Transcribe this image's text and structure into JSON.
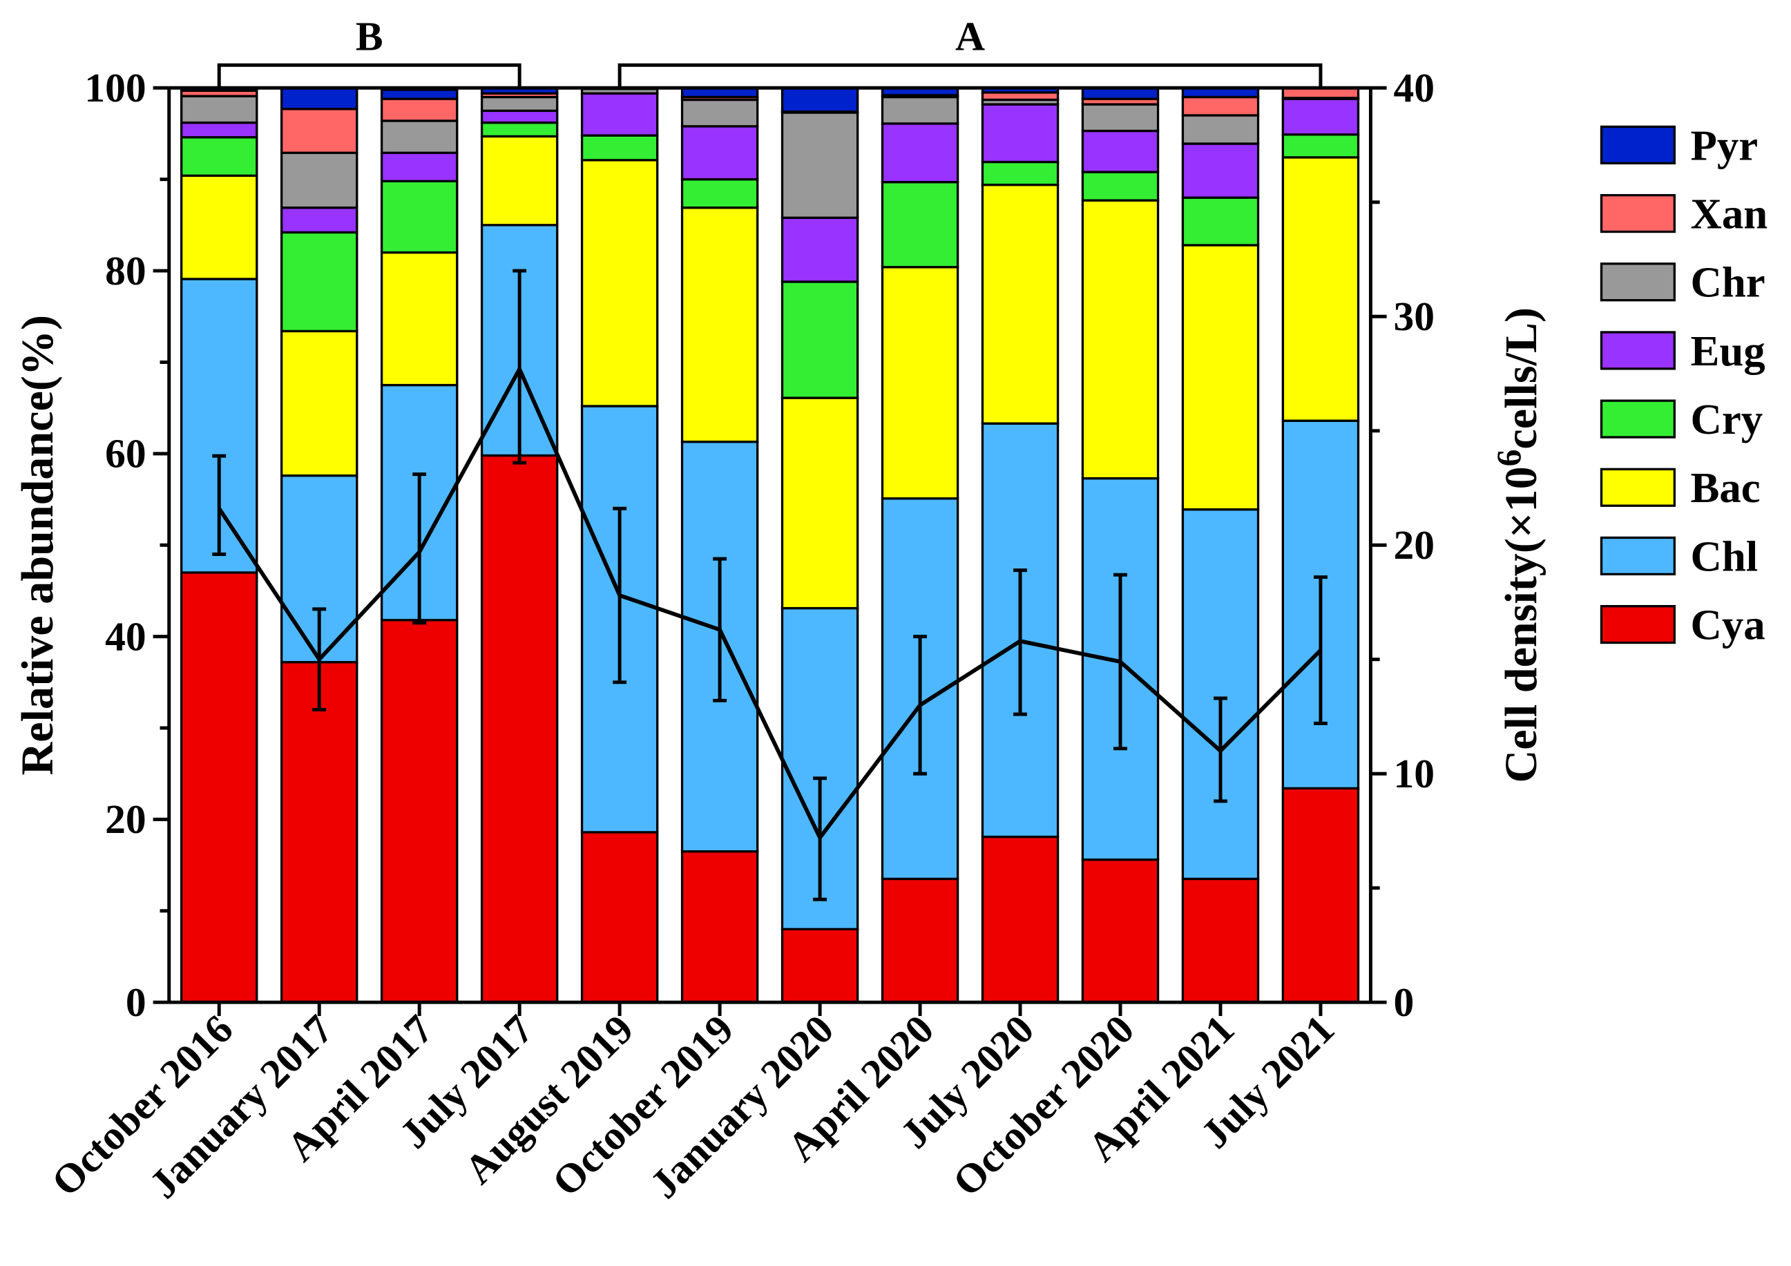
{
  "chart_data": {
    "type": "bar",
    "stacked": true,
    "categories": [
      "October 2016",
      "January 2017",
      "April 2017",
      "July 2017",
      "August 2019",
      "October 2019",
      "January 2020",
      "April 2020",
      "July 2020",
      "October 2020",
      "April 2021",
      "July 2021"
    ],
    "series": [
      {
        "name": "Cya",
        "color": "#EE0000",
        "values": [
          47.0,
          37.2,
          41.8,
          59.8,
          18.6,
          16.5,
          8.0,
          13.5,
          18.1,
          15.6,
          13.5,
          23.4
        ]
      },
      {
        "name": "Chl",
        "color": "#4DB8FF",
        "values": [
          32.1,
          20.4,
          25.7,
          25.2,
          46.6,
          44.8,
          35.1,
          41.6,
          45.2,
          41.7,
          40.4,
          40.2
        ]
      },
      {
        "name": "Bac",
        "color": "#FFFF00",
        "values": [
          11.3,
          15.8,
          14.5,
          9.7,
          26.9,
          25.6,
          23.0,
          25.3,
          26.1,
          30.4,
          28.9,
          28.8
        ]
      },
      {
        "name": "Cry",
        "color": "#33EE33",
        "values": [
          4.2,
          10.8,
          7.8,
          1.5,
          2.7,
          3.1,
          12.7,
          9.3,
          2.5,
          3.1,
          5.2,
          2.5
        ]
      },
      {
        "name": "Eug",
        "color": "#9933FF",
        "values": [
          1.6,
          2.7,
          3.1,
          1.3,
          4.6,
          5.8,
          7.0,
          6.4,
          6.3,
          4.5,
          5.9,
          3.9
        ]
      },
      {
        "name": "Chr",
        "color": "#999999",
        "values": [
          2.9,
          6.0,
          3.5,
          1.5,
          0.5,
          2.9,
          11.5,
          2.9,
          0.5,
          2.9,
          3.1,
          0.1
        ]
      },
      {
        "name": "Xan",
        "color": "#FF6666",
        "values": [
          0.6,
          4.8,
          2.4,
          0.4,
          0.1,
          0.3,
          0.1,
          0.2,
          0.8,
          0.6,
          2.0,
          1.1
        ]
      },
      {
        "name": "Pyr",
        "color": "#0022CC",
        "values": [
          0.3,
          2.3,
          1.0,
          0.6,
          0.0,
          1.0,
          2.6,
          0.8,
          0.5,
          1.2,
          1.0,
          0.0
        ]
      }
    ],
    "line": {
      "name": "Cell density",
      "axis": "right",
      "values": [
        21.6,
        15.0,
        19.7,
        27.7,
        17.8,
        16.3,
        7.2,
        13.0,
        15.8,
        14.9,
        11.0,
        15.4
      ],
      "error_low": [
        19.6,
        12.8,
        16.6,
        23.6,
        14.0,
        13.2,
        4.5,
        10.0,
        12.6,
        11.1,
        8.8,
        12.2
      ],
      "error_high": [
        23.9,
        17.2,
        23.1,
        32.0,
        21.6,
        19.4,
        9.8,
        16.0,
        18.9,
        18.7,
        13.3,
        18.6
      ]
    },
    "ylabel_left": "Relative abundance(%)",
    "ylabel_right_prefix": "Cell density(×10",
    "ylabel_right_sup": "6",
    "ylabel_right_suffix": "cells/L)",
    "ylim_left": [
      0,
      100
    ],
    "ylim_right": [
      0,
      40
    ],
    "yticks_left": [
      "0",
      "20",
      "40",
      "60",
      "80",
      "100"
    ],
    "yticks_right": [
      "0",
      "10",
      "20",
      "30",
      "40"
    ],
    "grid": false,
    "legend_position": "right",
    "legend_order": [
      "Pyr",
      "Xan",
      "Chr",
      "Eug",
      "Cry",
      "Bac",
      "Chl",
      "Cya"
    ],
    "groups": [
      {
        "label": "B",
        "from": 0,
        "to": 3
      },
      {
        "label": "A",
        "from": 4,
        "to": 11
      }
    ]
  }
}
